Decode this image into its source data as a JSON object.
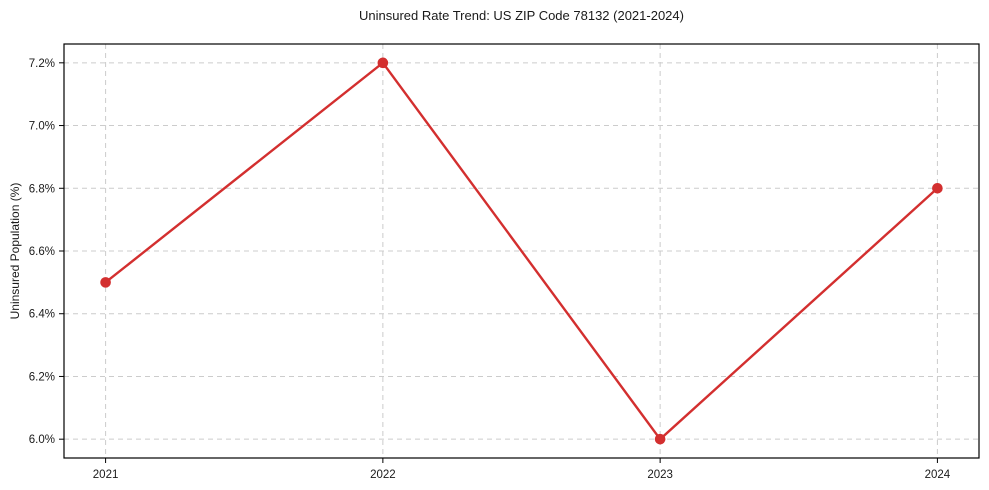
{
  "chart_data": {
    "type": "line",
    "title": "Uninsured Rate Trend: US ZIP Code 78132 (2021-2024)",
    "ylabel": "Uninsured Population (%)",
    "xlabel": "",
    "x": [
      2021,
      2022,
      2023,
      2024
    ],
    "values": [
      6.5,
      7.2,
      6.0,
      6.8
    ],
    "xticks": [
      2021,
      2022,
      2023,
      2024
    ],
    "xtick_labels": [
      "2021",
      "2022",
      "2023",
      "2024"
    ],
    "yticks": [
      6.0,
      6.2,
      6.4,
      6.6,
      6.8,
      7.0,
      7.2
    ],
    "ytick_labels": [
      "6.0%",
      "6.2%",
      "6.4%",
      "6.6%",
      "6.8%",
      "7.0%",
      "7.2%"
    ],
    "xlim": [
      2020.85,
      2024.15
    ],
    "ylim": [
      5.94,
      7.26
    ],
    "grid": true,
    "grid_color": "#cccccc",
    "grid_style": "dashed",
    "legend": false,
    "line_color": "#d32f2f",
    "marker": "circle",
    "text_color": "#1a1a1a",
    "background_color": "#ffffff"
  }
}
